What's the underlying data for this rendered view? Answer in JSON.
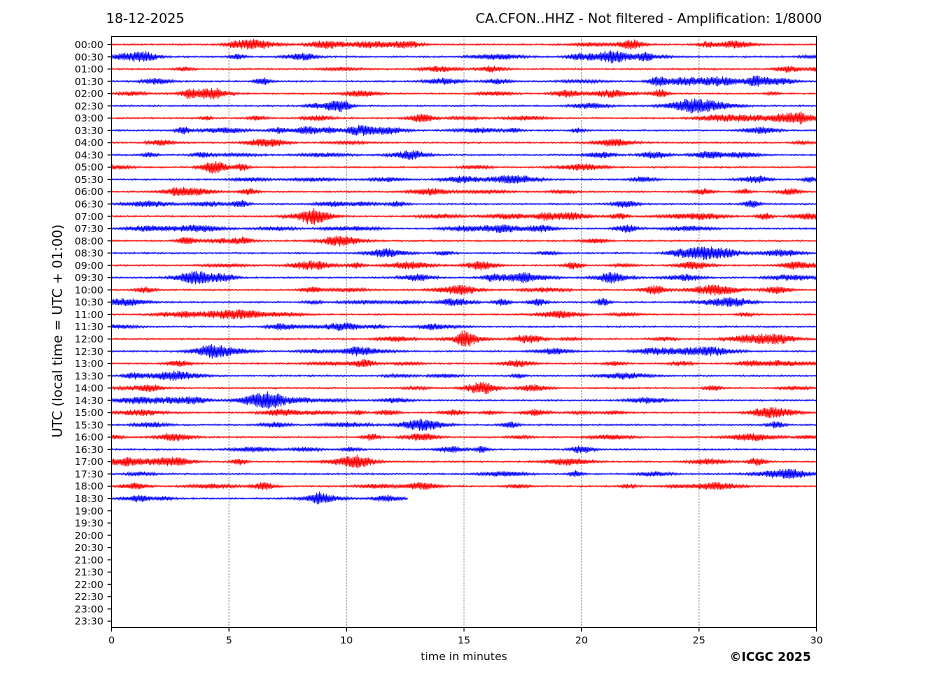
{
  "header": {
    "date": "18-12-2025",
    "title": "CA.CFON..HHZ - Not filtered - Amplification: 1/8000"
  },
  "footer": {
    "copyright": "©ICGC 2025"
  },
  "chart_data": {
    "type": "line",
    "subtype": "helicorder",
    "xlabel": "time in minutes",
    "ylabel": "UTC (local time = UTC + 01:00)",
    "xlim": [
      0,
      30
    ],
    "xticks": [
      0,
      5,
      10,
      15,
      20,
      25,
      30
    ],
    "xtick_labels": [
      "0",
      "5",
      "10",
      "15",
      "20",
      "25",
      "30"
    ],
    "grid": "vertical dotted lines at every 5 minutes",
    "colors": {
      "even_rows": "#ff0000",
      "odd_rows": "#0000ff"
    },
    "row_labels": [
      "00:00",
      "00:30",
      "01:00",
      "01:30",
      "02:00",
      "02:30",
      "03:00",
      "03:30",
      "04:00",
      "04:30",
      "05:00",
      "05:30",
      "06:00",
      "06:30",
      "07:00",
      "07:30",
      "08:00",
      "08:30",
      "09:00",
      "09:30",
      "10:00",
      "10:30",
      "11:00",
      "11:30",
      "12:00",
      "12:30",
      "13:00",
      "13:30",
      "14:00",
      "14:30",
      "15:00",
      "15:30",
      "16:00",
      "16:30",
      "17:00",
      "17:30",
      "18:00",
      "18:30",
      "19:00",
      "19:30",
      "20:00",
      "20:30",
      "21:00",
      "21:30",
      "22:00",
      "22:30",
      "23:00",
      "23:30"
    ],
    "rows_with_data": 38,
    "last_row_end_minute": 12.6
  }
}
